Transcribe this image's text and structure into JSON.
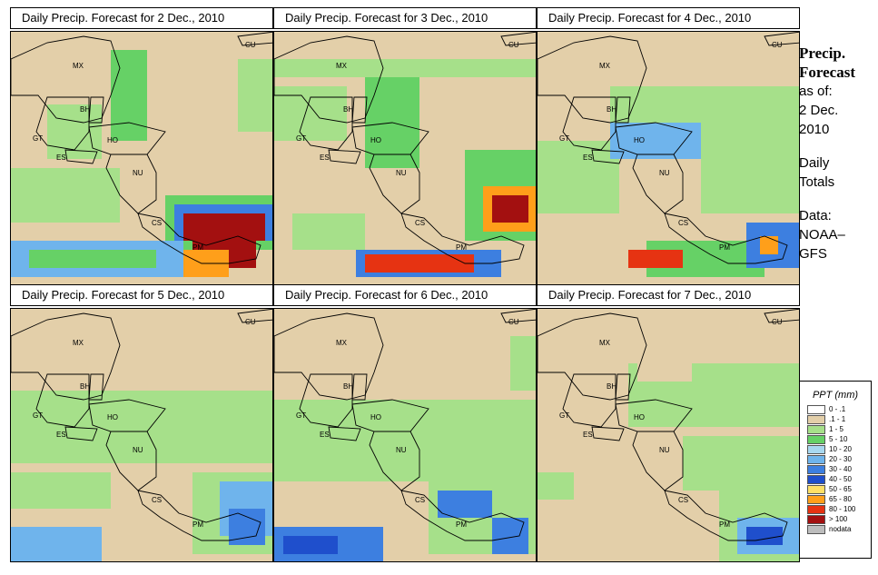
{
  "panels": [
    {
      "title": "Daily Precip. Forecast for  2 Dec., 2010"
    },
    {
      "title": "Daily Precip. Forecast for  3 Dec., 2010"
    },
    {
      "title": "Daily Precip. Forecast for  4 Dec., 2010"
    },
    {
      "title": "Daily Precip. Forecast for  5 Dec., 2010"
    },
    {
      "title": "Daily Precip. Forecast for  6 Dec., 2010"
    },
    {
      "title": "Daily Precip. Forecast for  7 Dec., 2010"
    }
  ],
  "map_labels": {
    "cu": "CU",
    "mx": "MX",
    "bh": "BH",
    "gt": "GT",
    "ho": "HO",
    "es": "ES",
    "nu": "NU",
    "cs": "CS",
    "pm": "PM"
  },
  "sidebar": {
    "heading_line1": "Precip.",
    "heading_line2": "Forecast",
    "asof": "as of:",
    "date_line1": "2 Dec.",
    "date_line2": "2010",
    "daily_line1": "Daily",
    "daily_line2": "Totals",
    "data_line1": "Data:",
    "data_line2": "NOAA–",
    "data_line3": "GFS"
  },
  "legend": {
    "title": "PPT (mm)",
    "items": [
      {
        "label": "0 - .1",
        "color": "#ffffff"
      },
      {
        "label": ".1 - 1",
        "color": "#e3cfa9"
      },
      {
        "label": "1 - 5",
        "color": "#a6e08a"
      },
      {
        "label": "5 - 10",
        "color": "#66d166"
      },
      {
        "label": "10 - 20",
        "color": "#a8d8f0"
      },
      {
        "label": "20 - 30",
        "color": "#6fb4ec"
      },
      {
        "label": "30 - 40",
        "color": "#3d7fe0"
      },
      {
        "label": "40 - 50",
        "color": "#1f4fcc"
      },
      {
        "label": "50 - 65",
        "color": "#ffe066"
      },
      {
        "label": "65 - 80",
        "color": "#ff9f1a"
      },
      {
        "label": "80 - 100",
        "color": "#e63312"
      },
      {
        "label": "> 100",
        "color": "#a31010"
      },
      {
        "label": "nodata",
        "color": "#bdbdbd"
      }
    ]
  }
}
